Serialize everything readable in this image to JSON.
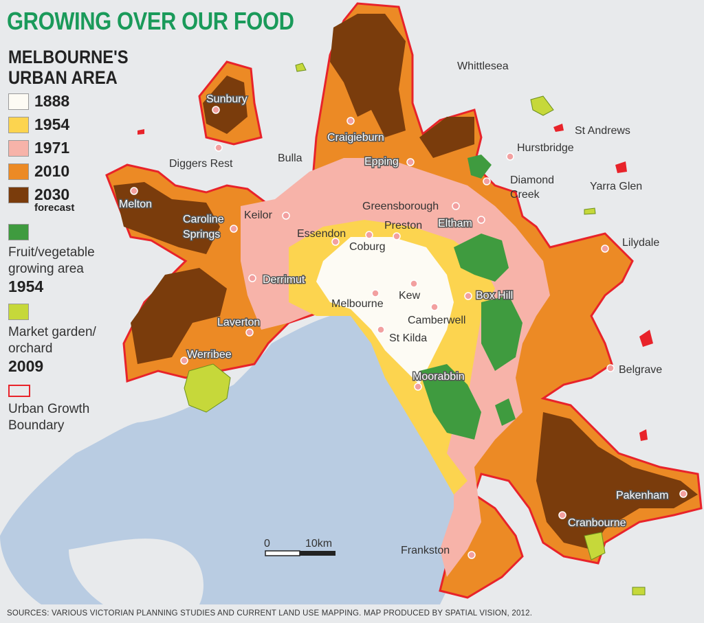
{
  "title": "GROWING OVER OUR FOOD",
  "legend": {
    "heading_line1": "MELBOURNE'S",
    "heading_line2": "URBAN AREA",
    "periods": [
      {
        "label": "1888",
        "color": "#fdfbf4"
      },
      {
        "label": "1954",
        "color": "#fcd44f"
      },
      {
        "label": "1971",
        "color": "#f7b3a9"
      },
      {
        "label": "2010",
        "color": "#ec8a25"
      },
      {
        "label": "2030",
        "sub": "forecast",
        "color": "#7a3c0c"
      }
    ],
    "fruit": {
      "line1": "Fruit/vegetable",
      "line2": "growing area",
      "year": "1954",
      "color": "#3f9b3f"
    },
    "market": {
      "line1": "Market garden/",
      "line2": "orchard",
      "year": "2009",
      "color": "#c6d83a"
    },
    "boundary": {
      "line1": "Urban Growth",
      "line2": "Boundary",
      "color": "#e8232a"
    }
  },
  "places": [
    {
      "name": "Whittlesea"
    },
    {
      "name": "St Andrews"
    },
    {
      "name": "Hurstbridge"
    },
    {
      "name": "Diamond"
    },
    {
      "name": "Creek"
    },
    {
      "name": "Yarra Glen"
    },
    {
      "name": "Lilydale"
    },
    {
      "name": "Belgrave"
    },
    {
      "name": "Pakenham"
    },
    {
      "name": "Cranbourne"
    },
    {
      "name": "Frankston"
    },
    {
      "name": "Moorabbin"
    },
    {
      "name": "St Kilda"
    },
    {
      "name": "Camberwell"
    },
    {
      "name": "Box Hill"
    },
    {
      "name": "Kew"
    },
    {
      "name": "Melbourne"
    },
    {
      "name": "Coburg"
    },
    {
      "name": "Preston"
    },
    {
      "name": "Greensborough"
    },
    {
      "name": "Eltham"
    },
    {
      "name": "Essendon"
    },
    {
      "name": "Keilor"
    },
    {
      "name": "Epping"
    },
    {
      "name": "Craigieburn"
    },
    {
      "name": "Bulla"
    },
    {
      "name": "Diggers Rest"
    },
    {
      "name": "Sunbury"
    },
    {
      "name": "Melton"
    },
    {
      "name": "Caroline"
    },
    {
      "name": "Springs"
    },
    {
      "name": "Derrimut"
    },
    {
      "name": "Laverton"
    },
    {
      "name": "Werribee"
    }
  ],
  "scale": {
    "zero": "0",
    "distance": "10km"
  },
  "source": "SOURCES: VARIOUS VICTORIAN PLANNING STUDIES AND CURRENT LAND USE MAPPING. MAP PRODUCED BY SPATIAL VISION, 2012."
}
